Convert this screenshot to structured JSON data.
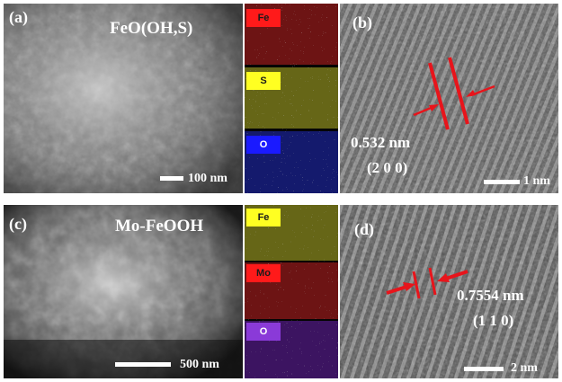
{
  "panels": {
    "a": {
      "label": "(a)",
      "title": "FeO(OH,S)",
      "scale": "100 nm"
    },
    "b": {
      "label": "(b)",
      "spacing": "0.532 nm",
      "plane": "(2 0 0)",
      "scale": "1 nm"
    },
    "c": {
      "label": "(c)",
      "title": "Mo-FeOOH",
      "scale": "500 nm"
    },
    "d": {
      "label": "(d)",
      "spacing": "0.7554 nm",
      "plane": "(1 1 0)",
      "scale": "2 nm"
    }
  },
  "maps_top": [
    {
      "element": "Fe",
      "tag_color": "#ff1a1a",
      "text_color": "#1a1a1a",
      "map_color": "#ff2a2a"
    },
    {
      "element": "S",
      "tag_color": "#ffff22",
      "text_color": "#1a1a1a",
      "map_color": "#eeee33"
    },
    {
      "element": "O",
      "tag_color": "#1a1aff",
      "text_color": "#ffffff",
      "map_color": "#2a3aff"
    }
  ],
  "maps_bottom": [
    {
      "element": "Fe",
      "tag_color": "#ffff22",
      "text_color": "#1a1a1a",
      "map_color": "#eeee33"
    },
    {
      "element": "Mo",
      "tag_color": "#ff1a1a",
      "text_color": "#1a1a1a",
      "map_color": "#ff2a2a"
    },
    {
      "element": "O",
      "tag_color": "#8a3ad8",
      "text_color": "#ffffff",
      "map_color": "#8a2be2"
    }
  ],
  "annotation_color": "#e8141b"
}
